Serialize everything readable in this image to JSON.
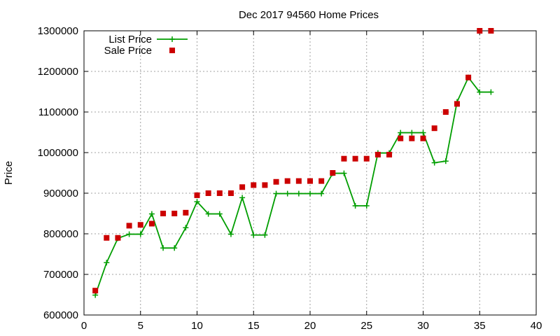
{
  "chart_data": {
    "type": "line",
    "title": "Dec 2017 94560 Home Prices",
    "xlabel": "",
    "ylabel": "Price",
    "xlim": [
      0,
      40
    ],
    "ylim": [
      600000,
      1300000
    ],
    "x_ticks": [
      "0",
      "5",
      "10",
      "15",
      "20",
      "25",
      "30",
      "35",
      "40"
    ],
    "y_ticks": [
      "600000",
      "700000",
      "800000",
      "900000",
      "1000000",
      "1100000",
      "1200000",
      "1300000"
    ],
    "grid": true,
    "legend_position": "top-left",
    "series": [
      {
        "name": "List Price",
        "style": "line-with-plus-markers",
        "color": "#009e00",
        "points": [
          [
            1,
            649000
          ],
          [
            2,
            729000
          ],
          [
            3,
            789000
          ],
          [
            4,
            799000
          ],
          [
            5,
            799000
          ],
          [
            6,
            849000
          ],
          [
            7,
            765000
          ],
          [
            8,
            765000
          ],
          [
            9,
            815000
          ],
          [
            10,
            879000
          ],
          [
            11,
            849000
          ],
          [
            12,
            849000
          ],
          [
            13,
            799000
          ],
          [
            14,
            889000
          ],
          [
            15,
            797000
          ],
          [
            16,
            797000
          ],
          [
            17,
            899000
          ],
          [
            18,
            899000
          ],
          [
            19,
            899000
          ],
          [
            20,
            899000
          ],
          [
            21,
            899000
          ],
          [
            22,
            949000
          ],
          [
            23,
            949000
          ],
          [
            24,
            869000
          ],
          [
            25,
            869000
          ],
          [
            26,
            999000
          ],
          [
            27,
            999000
          ],
          [
            28,
            1049000
          ],
          [
            29,
            1049000
          ],
          [
            30,
            1049000
          ],
          [
            31,
            975000
          ],
          [
            32,
            979000
          ],
          [
            33,
            1125000
          ],
          [
            34,
            1185000
          ],
          [
            35,
            1149000
          ],
          [
            36,
            1149000
          ]
        ]
      },
      {
        "name": "Sale Price",
        "style": "square-markers",
        "color": "#cc0000",
        "points": [
          [
            1,
            660000
          ],
          [
            2,
            790000
          ],
          [
            3,
            790000
          ],
          [
            4,
            820000
          ],
          [
            5,
            822000
          ],
          [
            6,
            825000
          ],
          [
            7,
            850000
          ],
          [
            8,
            850000
          ],
          [
            9,
            852000
          ],
          [
            10,
            895000
          ],
          [
            11,
            900000
          ],
          [
            12,
            900000
          ],
          [
            13,
            900000
          ],
          [
            14,
            915000
          ],
          [
            15,
            920000
          ],
          [
            16,
            920000
          ],
          [
            17,
            928000
          ],
          [
            18,
            930000
          ],
          [
            19,
            930000
          ],
          [
            20,
            930000
          ],
          [
            21,
            930000
          ],
          [
            22,
            950000
          ],
          [
            23,
            985000
          ],
          [
            24,
            985000
          ],
          [
            25,
            985000
          ],
          [
            26,
            995000
          ],
          [
            27,
            995000
          ],
          [
            28,
            1035000
          ],
          [
            29,
            1035000
          ],
          [
            30,
            1035000
          ],
          [
            31,
            1060000
          ],
          [
            32,
            1100000
          ],
          [
            33,
            1120000
          ],
          [
            34,
            1185000
          ],
          [
            35,
            1300000
          ],
          [
            36,
            1300000
          ]
        ]
      }
    ]
  }
}
